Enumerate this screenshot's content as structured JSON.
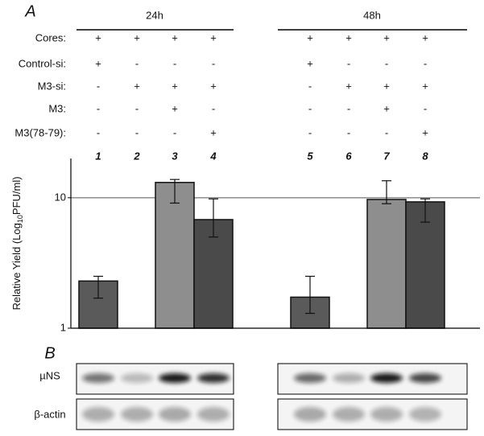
{
  "panel_a": "A",
  "groups": [
    "24h",
    "48h"
  ],
  "conditions": [
    {
      "label": "Cores:",
      "marks": [
        "+",
        "+",
        "+",
        "+",
        "+",
        "+",
        "+",
        "+"
      ]
    },
    {
      "label": "Control-si:",
      "marks": [
        "+",
        "-",
        "-",
        "-",
        "+",
        "-",
        "-",
        "-"
      ]
    },
    {
      "label": "M3-si:",
      "marks": [
        "-",
        "+",
        "+",
        "+",
        "-",
        "+",
        "+",
        "+"
      ]
    },
    {
      "label": "M3:",
      "marks": [
        "-",
        "-",
        "+",
        "-",
        "-",
        "-",
        "+",
        "-"
      ]
    },
    {
      "label": "M3(78-79):",
      "marks": [
        "-",
        "-",
        "-",
        "+",
        "-",
        "-",
        "-",
        "+"
      ]
    }
  ],
  "chart_data": {
    "type": "bar",
    "y_label": {
      "text": "Relative Yield (Log",
      "sub": "10",
      "tail": "PFU/ml)"
    },
    "categories": [
      "1",
      "2",
      "3",
      "4",
      "5",
      "6",
      "7",
      "8"
    ],
    "values": [
      2.3,
      null,
      13.1,
      6.8,
      1.73,
      null,
      9.7,
      9.3
    ],
    "lower": [
      1.7,
      null,
      9.1,
      5.0,
      1.3,
      null,
      9.0,
      6.5
    ],
    "upper": [
      2.5,
      null,
      13.8,
      9.8,
      2.5,
      null,
      13.5,
      9.8
    ],
    "colors": [
      "#5a5a5a",
      "#5a5a5a",
      "#8e8e8e",
      "#4a4a4a",
      "#5a5a5a",
      "#5a5a5a",
      "#8e8e8e",
      "#4a4a4a"
    ],
    "ylim": [
      1,
      20
    ],
    "yticks": [
      1,
      10
    ],
    "log": true,
    "grid": true
  },
  "panel_b": "B",
  "blot_rows": [
    "µNS",
    "β-actin"
  ]
}
